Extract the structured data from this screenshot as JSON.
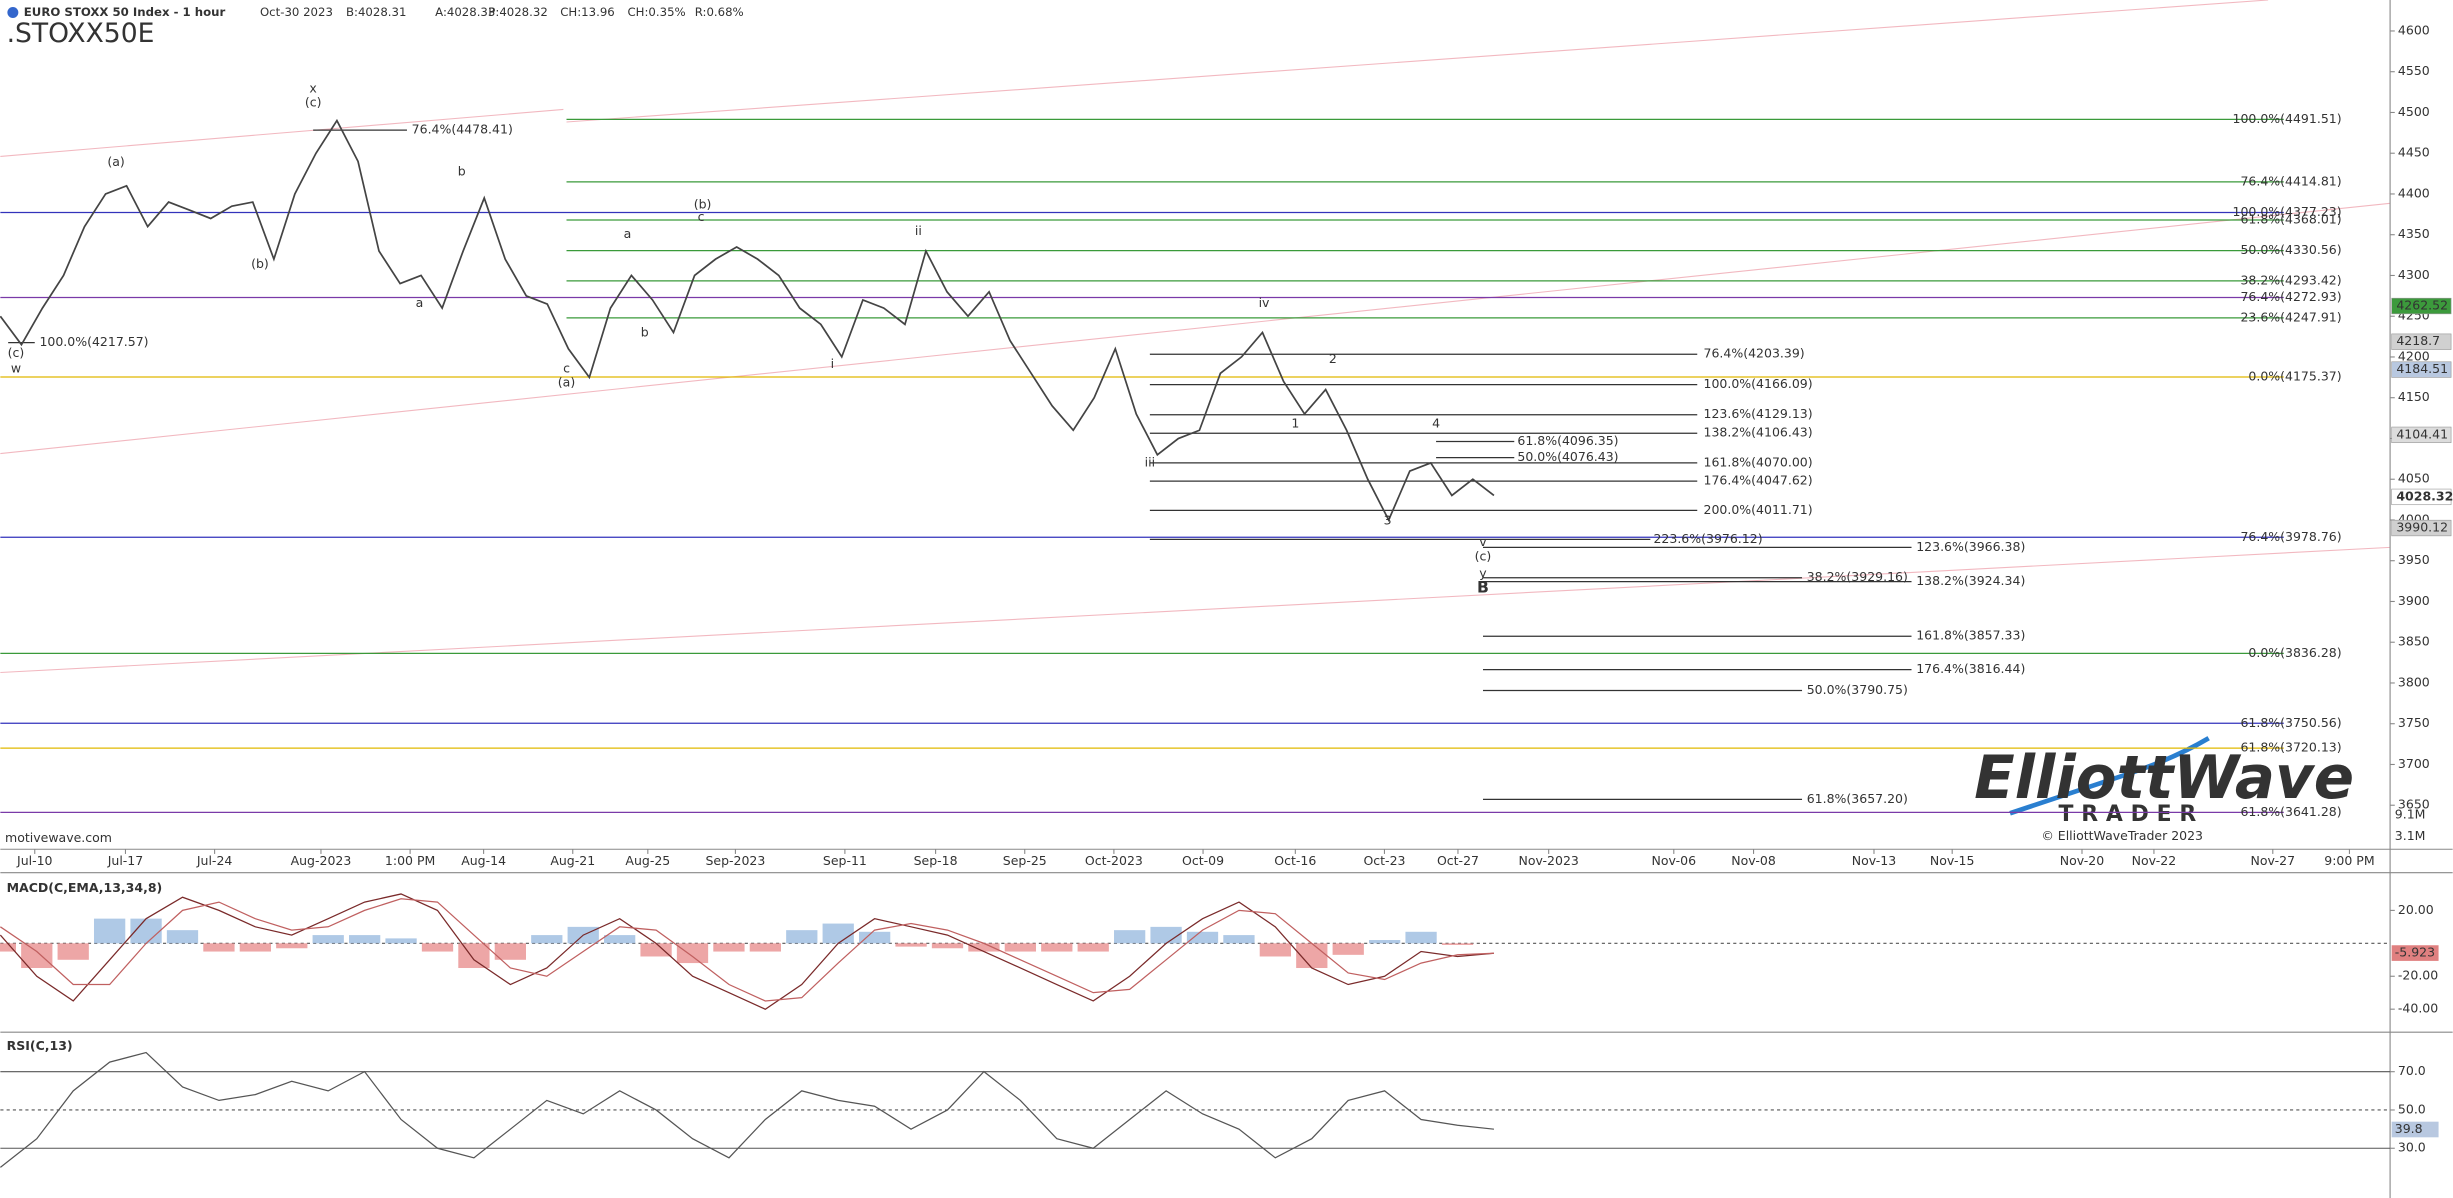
{
  "chart_data": {
    "type": "line",
    "symbol": ".STOXX50E",
    "title": "EURO STOXX 50 Index - 1 hour",
    "header": {
      "date": "Oct-30 2023",
      "bid": "B:4028.31",
      "ask": "A:4028.33",
      "price": "P:4028.32",
      "change": "CH:13.96",
      "change_pct": "CH:0.35%",
      "range": "R:0.68%"
    },
    "watermark": "motivewave.com",
    "copyright": "© ElliottWaveTrader 2023",
    "logo": {
      "top": "ElliottWave",
      "bottom": "TRADER"
    },
    "x_labels": [
      "Jul-10",
      "Jul-17",
      "Jul-24",
      "Aug-2023",
      "1:00 PM",
      "Aug-14",
      "Aug-21",
      "Aug-25",
      "Sep-2023",
      "Sep-11",
      "Sep-18",
      "Sep-25",
      "Oct-2023",
      "Oct-09",
      "Oct-16",
      "Oct-23",
      "Oct-27",
      "Nov-2023",
      "Nov-06",
      "Nov-08",
      "Nov-13",
      "Nov-15",
      "Nov-20",
      "Nov-22",
      "Nov-27",
      "9:00 PM"
    ],
    "ylim": [
      3596,
      4638
    ],
    "yticks": [
      3650,
      3700,
      3750,
      3800,
      3850,
      3900,
      3950,
      4000,
      4050,
      4100,
      4150,
      4200,
      4250,
      4300,
      4350,
      4400,
      4450,
      4500,
      4550,
      4600
    ],
    "series": [
      {
        "name": "EURO STOXX 50",
        "color": "#444444",
        "values": [
          4250,
          4215,
          4260,
          4300,
          4360,
          4400,
          4410,
          4360,
          4390,
          4380,
          4370,
          4385,
          4390,
          4320,
          4400,
          4450,
          4490,
          4440,
          4330,
          4290,
          4300,
          4260,
          4330,
          4395,
          4320,
          4275,
          4265,
          4210,
          4175,
          4260,
          4300,
          4270,
          4230,
          4300,
          4320,
          4335,
          4320,
          4300,
          4260,
          4240,
          4200,
          4270,
          4260,
          4240,
          4330,
          4280,
          4250,
          4280,
          4220,
          4180,
          4140,
          4110,
          4150,
          4210,
          4130,
          4080,
          4100,
          4110,
          4180,
          4200,
          4230,
          4170,
          4130,
          4160,
          4110,
          4050,
          4000,
          4060,
          4070,
          4030,
          4050,
          4030
        ]
      }
    ],
    "price_tags": [
      {
        "value": 4262.52,
        "color": "#3c9a3c"
      },
      {
        "value": 4218.7,
        "color": "#d0d0d0"
      },
      {
        "value": 4184.51,
        "color": "#b8c8e0"
      },
      {
        "value": 4104.41,
        "color": "#dcdcdc"
      },
      {
        "value": 4028.32,
        "color": "#ffffff"
      },
      {
        "value": 3990.12,
        "color": "#d0d0d0"
      }
    ],
    "volume_labels": [
      "9.1M",
      "3.1M"
    ],
    "fib_levels": [
      {
        "label": "100.0%(4491.51)",
        "value": 4491.51,
        "color": "#3a9a3a"
      },
      {
        "label": "76.4%(4414.81)",
        "value": 4414.81,
        "color": "#3a9a3a"
      },
      {
        "label": "61.8%(4368.01)",
        "value": 4368.01,
        "color": "#3a9a3a"
      },
      {
        "label": "50.0%(4330.56)",
        "value": 4330.56,
        "color": "#3a9a3a"
      },
      {
        "label": "38.2%(4293.42)",
        "value": 4293.42,
        "color": "#3a9a3a"
      },
      {
        "label": "23.6%(4247.91)",
        "value": 4247.91,
        "color": "#3a9a3a"
      },
      {
        "label": "100.0%(4377.23)",
        "value": 4377.23,
        "color": "#3333bb"
      },
      {
        "label": "76.4%(4272.93)",
        "value": 4272.93,
        "color": "#7a3aa8"
      },
      {
        "label": "0.0%(4175.37)",
        "value": 4175.37,
        "color": "#e0b800"
      },
      {
        "label": "76.4%(3978.76)",
        "value": 3978.76,
        "color": "#3333bb"
      },
      {
        "label": "0.0%(3836.28)",
        "value": 3836.28,
        "color": "#3a9a3a"
      },
      {
        "label": "61.8%(3750.56)",
        "value": 3750.56,
        "color": "#3333bb"
      },
      {
        "label": "61.8%(3720.13)",
        "value": 3720.13,
        "color": "#e0b800"
      },
      {
        "label": "61.8%(3641.28)",
        "value": 3641.28,
        "color": "#7a3aa8"
      },
      {
        "label": "76.4%(4203.39)",
        "value": 4203.39,
        "color": "#333333"
      },
      {
        "label": "100.0%(4166.09)",
        "value": 4166.09,
        "color": "#333333"
      },
      {
        "label": "123.6%(4129.13)",
        "value": 4129.13,
        "color": "#333333"
      },
      {
        "label": "138.2%(4106.43)",
        "value": 4106.43,
        "color": "#333333"
      },
      {
        "label": "161.8%(4070.00)",
        "value": 4070.0,
        "color": "#333333"
      },
      {
        "label": "176.4%(4047.62)",
        "value": 4047.62,
        "color": "#333333"
      },
      {
        "label": "200.0%(4011.71)",
        "value": 4011.71,
        "color": "#333333"
      },
      {
        "label": "223.6%(3976.12)",
        "value": 3976.12,
        "color": "#333333"
      },
      {
        "label": "61.8%(4096.35)",
        "value": 4096.35,
        "color": "#333333"
      },
      {
        "label": "50.0%(4076.43)",
        "value": 4076.43,
        "color": "#333333"
      },
      {
        "label": "123.6%(3966.38)",
        "value": 3966.38,
        "color": "#333333"
      },
      {
        "label": "38.2%(3929.16)",
        "value": 3929.16,
        "color": "#333333"
      },
      {
        "label": "138.2%(3924.34)",
        "value": 3924.34,
        "color": "#333333"
      },
      {
        "label": "161.8%(3857.33)",
        "value": 3857.33,
        "color": "#333333"
      },
      {
        "label": "176.4%(3816.44)",
        "value": 3816.44,
        "color": "#333333"
      },
      {
        "label": "50.0%(3790.75)",
        "value": 3790.75,
        "color": "#333333"
      },
      {
        "label": "61.8%(3657.20)",
        "value": 3657.2,
        "color": "#333333"
      },
      {
        "label": "76.4%(4478.41)",
        "value": 4478.41,
        "color": "#333333"
      },
      {
        "label": "100.0%(4217.57)",
        "value": 4217.57,
        "color": "#333333"
      }
    ],
    "wave_labels": [
      "(a)",
      "(b)",
      "(c)",
      "x",
      "(c)",
      "w",
      "b",
      "a",
      "c",
      "(a)",
      "a",
      "b",
      "c",
      "(b)",
      "ii",
      "i",
      "iii",
      "iv",
      "1",
      "2",
      "3",
      "4",
      "v",
      "(c)",
      "y",
      "B"
    ],
    "wave_color": "#2233bb",
    "macd": {
      "title": "MACD(C,EMA,13,34,8)",
      "ylim": [
        -54,
        41
      ],
      "yticks": [
        {
          "value": 20,
          "label": "20.00"
        },
        {
          "value": -20,
          "label": "-20.00"
        },
        {
          "value": -40,
          "label": "-40.00"
        }
      ],
      "last": {
        "value": -5.923,
        "color": "#e08080"
      },
      "series": [
        {
          "name": "MACD",
          "color": "#7a2a2a",
          "values": [
            5,
            -20,
            -35,
            -10,
            15,
            28,
            20,
            10,
            5,
            15,
            25,
            30,
            20,
            -10,
            -25,
            -15,
            5,
            15,
            0,
            -20,
            -30,
            -40,
            -25,
            0,
            15,
            10,
            5,
            -5,
            -15,
            -25,
            -35,
            -20,
            0,
            15,
            25,
            10,
            -15,
            -25,
            -20,
            -5,
            -8,
            -6
          ]
        },
        {
          "name": "Signal",
          "color": "#c06060",
          "values": [
            10,
            -5,
            -25,
            -25,
            0,
            20,
            25,
            15,
            8,
            10,
            20,
            27,
            25,
            5,
            -15,
            -20,
            -5,
            10,
            8,
            -8,
            -25,
            -35,
            -33,
            -12,
            8,
            12,
            8,
            0,
            -10,
            -20,
            -30,
            -28,
            -10,
            8,
            20,
            18,
            0,
            -18,
            -22,
            -12,
            -7,
            -6
          ]
        }
      ],
      "histogram": {
        "pos_color": "#9bbbe0",
        "neg_color": "#e89090",
        "values": [
          -5,
          -15,
          -10,
          15,
          15,
          8,
          -5,
          -5,
          -3,
          5,
          5,
          3,
          -5,
          -15,
          -10,
          5,
          10,
          5,
          -8,
          -12,
          -5,
          -5,
          8,
          12,
          7,
          -2,
          -3,
          -5,
          -5,
          -5,
          -5,
          8,
          10,
          7,
          5,
          -8,
          -15,
          -7,
          2,
          7,
          -1,
          0
        ]
      }
    },
    "rsi": {
      "title": "RSI(C,13)",
      "ylim": [
        4,
        89
      ],
      "yticks": [
        {
          "value": 70,
          "label": "70.0"
        },
        {
          "value": 50,
          "label": "50.0"
        },
        {
          "value": 30,
          "label": "30.0"
        }
      ],
      "last": {
        "value": 39.8,
        "color": "#b8c8e0"
      },
      "series": [
        {
          "name": "RSI",
          "color": "#555555",
          "values": [
            20,
            35,
            60,
            75,
            80,
            62,
            55,
            58,
            65,
            60,
            70,
            45,
            30,
            25,
            40,
            55,
            48,
            60,
            50,
            35,
            25,
            45,
            60,
            55,
            52,
            40,
            50,
            70,
            55,
            35,
            30,
            45,
            60,
            48,
            40,
            25,
            35,
            55,
            60,
            45,
            42,
            40
          ]
        }
      ]
    }
  }
}
